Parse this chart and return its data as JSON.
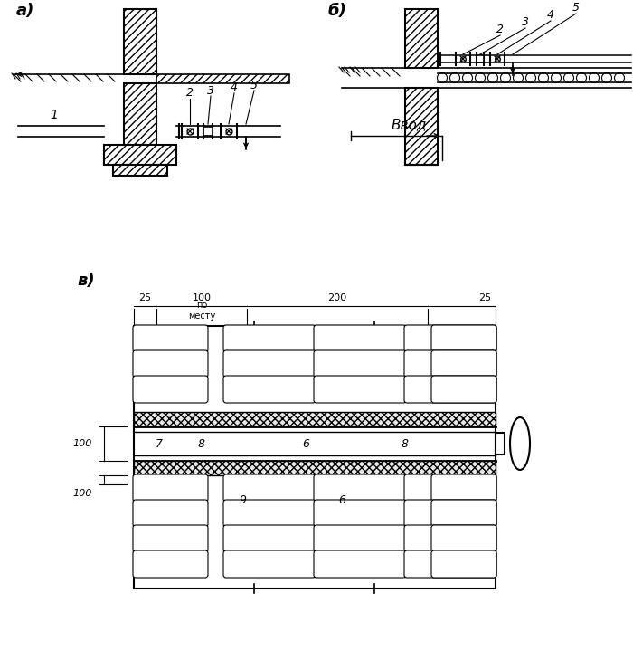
{
  "bg_color": "#ffffff",
  "label_a": "а)",
  "label_b": "б)",
  "label_v": "в)",
  "dim_25": "25",
  "dim_100_mid": "100",
  "dim_200": "200",
  "dim_25r": "25",
  "dim_100_left": "100",
  "dim_100_left2": "100",
  "dim_po_mestu": "по\nместу",
  "label_vvod": "Ввод",
  "nums_pipe": [
    "7",
    "8",
    "6",
    "8"
  ],
  "nums_lower": [
    "9",
    "6"
  ],
  "panel_a_labels": [
    "1",
    "2",
    "3",
    "4",
    "5"
  ],
  "panel_b_labels": [
    "2",
    "3",
    "4",
    "5"
  ]
}
